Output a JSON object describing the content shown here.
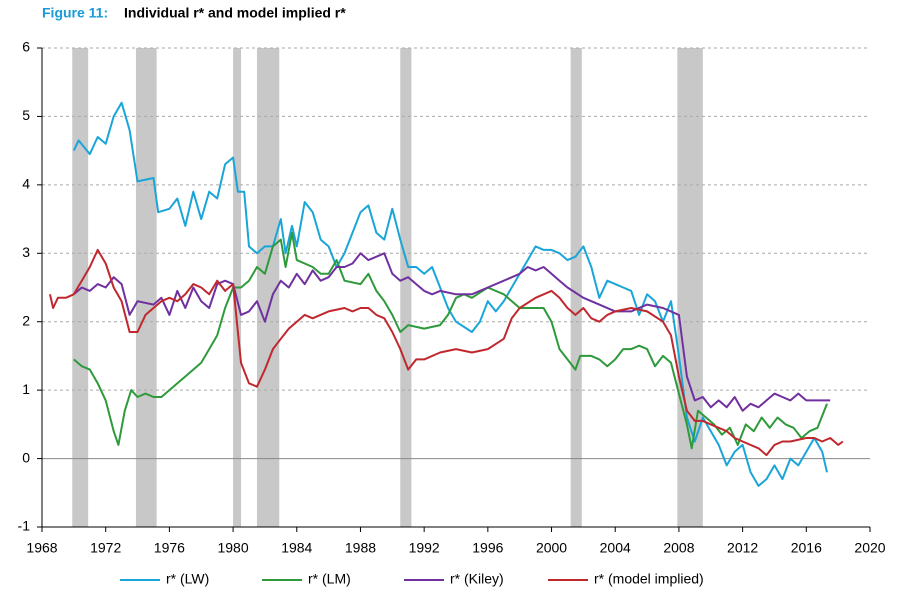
{
  "chart_data": {
    "type": "line",
    "figure_label": "Figure 11:",
    "title": "Individual r* and model implied r*",
    "xlim": [
      1968,
      2020
    ],
    "xticks": [
      1968,
      1972,
      1976,
      1980,
      1984,
      1988,
      1992,
      1996,
      2000,
      2004,
      2008,
      2012,
      2016,
      2020
    ],
    "ylim": [
      -1,
      6
    ],
    "yticks": [
      -1,
      0,
      1,
      2,
      3,
      4,
      5,
      6
    ],
    "grid": true,
    "legend": "bottom",
    "recession_color": "#c8c8c8",
    "recessions": [
      [
        1969.9,
        1970.9
      ],
      [
        1973.9,
        1975.2
      ],
      [
        1980.0,
        1980.5
      ],
      [
        1981.5,
        1982.9
      ],
      [
        1990.5,
        1991.2
      ],
      [
        2001.2,
        2001.9
      ],
      [
        2007.9,
        2009.5
      ]
    ],
    "series": [
      {
        "name": "r* (LW)",
        "color": "#1aa5d9",
        "x": [
          1970.0,
          1970.3,
          1971,
          1971.5,
          1972,
          1972.5,
          1973,
          1973.5,
          1974,
          1975,
          1975.3,
          1976,
          1976.5,
          1977,
          1977.5,
          1978,
          1978.5,
          1979,
          1979.5,
          1980,
          1980.3,
          1980.7,
          1981,
          1981.5,
          1982,
          1982.5,
          1983,
          1983.3,
          1983.7,
          1984,
          1984.5,
          1985,
          1985.5,
          1986,
          1986.5,
          1987,
          1987.5,
          1988,
          1988.5,
          1989,
          1989.5,
          1990,
          1990.5,
          1991,
          1991.5,
          1992,
          1992.5,
          1993,
          1993.5,
          1994,
          1995,
          1995.5,
          1996,
          1996.5,
          1997,
          1997.5,
          1998,
          1998.5,
          1999,
          1999.5,
          2000,
          2000.5,
          2001,
          2001.5,
          2002,
          2002.5,
          2003,
          2003.5,
          2004,
          2004.5,
          2005,
          2005.5,
          2006,
          2006.5,
          2007,
          2007.5,
          2008,
          2008.5,
          2009,
          2009.5,
          2010,
          2010.5,
          2011,
          2011.5,
          2012,
          2012.5,
          2013,
          2013.5,
          2014,
          2014.5,
          2015,
          2015.5,
          2016,
          2016.5,
          2017,
          2017.3
        ],
        "values": [
          4.5,
          4.65,
          4.45,
          4.7,
          4.6,
          5.0,
          5.2,
          4.8,
          4.05,
          4.1,
          3.6,
          3.65,
          3.8,
          3.4,
          3.9,
          3.5,
          3.9,
          3.8,
          4.3,
          4.4,
          3.9,
          3.9,
          3.1,
          3.0,
          3.1,
          3.1,
          3.5,
          3.0,
          3.4,
          3.1,
          3.75,
          3.6,
          3.2,
          3.1,
          2.8,
          3.0,
          3.3,
          3.6,
          3.7,
          3.3,
          3.2,
          3.65,
          3.2,
          2.8,
          2.8,
          2.7,
          2.8,
          2.5,
          2.2,
          2.0,
          1.85,
          2.0,
          2.3,
          2.15,
          2.3,
          2.5,
          2.7,
          2.9,
          3.1,
          3.05,
          3.05,
          3.0,
          2.9,
          2.95,
          3.1,
          2.8,
          2.35,
          2.6,
          2.55,
          2.5,
          2.45,
          2.1,
          2.4,
          2.3,
          2.0,
          2.3,
          1.5,
          0.6,
          0.25,
          0.6,
          0.4,
          0.2,
          -0.1,
          0.1,
          0.2,
          -0.2,
          -0.4,
          -0.3,
          -0.1,
          -0.3,
          0.0,
          -0.1,
          0.1,
          0.3,
          0.1,
          -0.2
        ]
      },
      {
        "name": "r* (LM)",
        "color": "#2e9a3b",
        "x": [
          1970,
          1970.5,
          1971,
          1971.5,
          1972,
          1972.5,
          1972.8,
          1973.2,
          1973.6,
          1974,
          1974.5,
          1975,
          1975.5,
          1976,
          1977,
          1978,
          1978.5,
          1979,
          1979.5,
          1980,
          1980.5,
          1981,
          1981.5,
          1982,
          1982.5,
          1983,
          1983.3,
          1983.7,
          1984,
          1985,
          1985.5,
          1986,
          1986.5,
          1987,
          1988,
          1988.5,
          1989,
          1989.5,
          1990,
          1990.5,
          1991,
          1992,
          1993,
          1993.5,
          1994,
          1994.5,
          1995,
          1996,
          1997,
          1998,
          1999,
          1999.5,
          2000,
          2000.5,
          2001,
          2001.5,
          2001.8,
          2002.5,
          2003,
          2003.5,
          2004,
          2004.5,
          2005,
          2005.5,
          2006,
          2006.5,
          2007,
          2007.5,
          2008,
          2008.5,
          2008.8,
          2009.2,
          2009.7,
          2010.2,
          2010.7,
          2011.2,
          2011.7,
          2012.2,
          2012.7,
          2013.2,
          2013.7,
          2014.2,
          2014.7,
          2015.2,
          2015.7,
          2016.2,
          2016.7,
          2017.3
        ],
        "values": [
          1.45,
          1.35,
          1.3,
          1.1,
          0.85,
          0.4,
          0.2,
          0.7,
          1.0,
          0.9,
          0.95,
          0.9,
          0.9,
          1.0,
          1.2,
          1.4,
          1.6,
          1.8,
          2.2,
          2.5,
          2.5,
          2.6,
          2.8,
          2.7,
          3.1,
          3.2,
          2.8,
          3.3,
          2.9,
          2.8,
          2.7,
          2.7,
          2.9,
          2.6,
          2.55,
          2.7,
          2.45,
          2.3,
          2.1,
          1.85,
          1.95,
          1.9,
          1.95,
          2.1,
          2.35,
          2.4,
          2.35,
          2.5,
          2.4,
          2.2,
          2.2,
          2.2,
          2.0,
          1.6,
          1.45,
          1.3,
          1.5,
          1.5,
          1.45,
          1.35,
          1.45,
          1.6,
          1.6,
          1.65,
          1.6,
          1.35,
          1.5,
          1.4,
          0.95,
          0.5,
          0.15,
          0.7,
          0.6,
          0.5,
          0.35,
          0.45,
          0.2,
          0.5,
          0.4,
          0.6,
          0.45,
          0.6,
          0.5,
          0.45,
          0.3,
          0.4,
          0.45,
          0.8
        ]
      },
      {
        "name": "r* (Kiley)",
        "color": "#7030a0",
        "x": [
          1970,
          1970.5,
          1971,
          1971.5,
          1972,
          1972.5,
          1973,
          1973.5,
          1974,
          1975,
          1975.5,
          1976,
          1976.5,
          1977,
          1977.5,
          1978,
          1978.5,
          1979,
          1979.5,
          1980,
          1980.5,
          1981,
          1981.5,
          1982,
          1982.5,
          1983,
          1983.5,
          1984,
          1984.5,
          1985,
          1985.5,
          1986,
          1986.5,
          1987,
          1987.5,
          1988,
          1988.5,
          1989,
          1989.5,
          1990,
          1990.5,
          1991,
          1991.5,
          1992,
          1992.5,
          1993,
          1994,
          1995,
          1996,
          1997,
          1998,
          1998.5,
          1999,
          1999.5,
          2000,
          2000.5,
          2001,
          2002,
          2003,
          2004,
          2005,
          2006,
          2007,
          2008,
          2008.5,
          2009,
          2009.5,
          2010,
          2010.5,
          2011,
          2011.5,
          2012,
          2012.5,
          2013,
          2013.5,
          2014,
          2014.5,
          2015,
          2015.5,
          2016,
          2016.5,
          2017,
          2017.5
        ],
        "values": [
          2.4,
          2.5,
          2.45,
          2.55,
          2.5,
          2.65,
          2.55,
          2.1,
          2.3,
          2.25,
          2.35,
          2.1,
          2.45,
          2.2,
          2.5,
          2.3,
          2.2,
          2.55,
          2.6,
          2.55,
          2.1,
          2.15,
          2.3,
          2.0,
          2.4,
          2.6,
          2.5,
          2.7,
          2.55,
          2.75,
          2.6,
          2.65,
          2.8,
          2.8,
          2.85,
          3.0,
          2.9,
          2.95,
          3.0,
          2.7,
          2.6,
          2.65,
          2.55,
          2.45,
          2.4,
          2.45,
          2.4,
          2.4,
          2.5,
          2.6,
          2.7,
          2.8,
          2.75,
          2.8,
          2.7,
          2.6,
          2.5,
          2.35,
          2.25,
          2.15,
          2.15,
          2.25,
          2.2,
          2.1,
          1.2,
          0.85,
          0.9,
          0.75,
          0.85,
          0.75,
          0.9,
          0.7,
          0.8,
          0.75,
          0.85,
          0.95,
          0.9,
          0.85,
          0.95,
          0.85,
          0.85,
          0.85,
          0.85
        ]
      },
      {
        "name": "r* (model implied)",
        "color": "#c0282d",
        "x": [
          1968.5,
          1968.7,
          1969,
          1969.5,
          1970,
          1970.5,
          1971,
          1971.5,
          1972,
          1972.5,
          1973,
          1973.5,
          1974,
          1974.5,
          1975,
          1975.5,
          1976,
          1976.5,
          1977,
          1977.5,
          1978,
          1978.5,
          1979,
          1979.5,
          1980,
          1980.5,
          1981,
          1981.5,
          1982,
          1982.5,
          1983,
          1983.5,
          1984,
          1984.5,
          1985,
          1986,
          1987,
          1987.5,
          1988,
          1988.5,
          1989,
          1989.5,
          1990,
          1990.5,
          1991,
          1991.5,
          1992,
          1993,
          1994,
          1995,
          1996,
          1997,
          1997.5,
          1998,
          1999,
          2000,
          2000.5,
          2001,
          2001.5,
          2002,
          2002.5,
          2003,
          2003.5,
          2004,
          2005,
          2006,
          2007,
          2007.5,
          2008,
          2008.5,
          2009,
          2009.5,
          2010,
          2011,
          2011.5,
          2012,
          2013,
          2013.5,
          2014,
          2014.5,
          2015,
          2016,
          2016.5,
          2017,
          2017.5,
          2018,
          2018.3
        ],
        "values": [
          2.4,
          2.2,
          2.35,
          2.35,
          2.4,
          2.6,
          2.8,
          3.05,
          2.85,
          2.5,
          2.3,
          1.85,
          1.85,
          2.1,
          2.2,
          2.3,
          2.35,
          2.3,
          2.4,
          2.55,
          2.5,
          2.4,
          2.6,
          2.45,
          2.55,
          1.4,
          1.1,
          1.05,
          1.3,
          1.6,
          1.75,
          1.9,
          2.0,
          2.1,
          2.05,
          2.15,
          2.2,
          2.15,
          2.2,
          2.2,
          2.1,
          2.05,
          1.85,
          1.6,
          1.3,
          1.45,
          1.45,
          1.55,
          1.6,
          1.55,
          1.6,
          1.75,
          2.05,
          2.2,
          2.35,
          2.45,
          2.35,
          2.2,
          2.1,
          2.2,
          2.05,
          2.0,
          2.1,
          2.15,
          2.2,
          2.15,
          2.0,
          1.8,
          1.2,
          0.7,
          0.55,
          0.55,
          0.5,
          0.4,
          0.3,
          0.25,
          0.15,
          0.05,
          0.2,
          0.25,
          0.25,
          0.3,
          0.3,
          0.25,
          0.3,
          0.2,
          0.25
        ]
      }
    ]
  }
}
